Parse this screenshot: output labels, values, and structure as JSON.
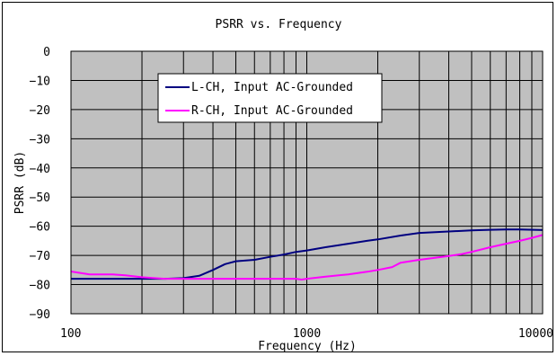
{
  "chart_data": {
    "type": "line",
    "title": "PSRR vs. Frequency",
    "xlabel": "Frequency (Hz)",
    "ylabel": "PSRR (dB)",
    "xscale": "log",
    "xlim": [
      100,
      10000
    ],
    "ylim": [
      -90,
      0
    ],
    "x_ticks": [
      {
        "value": 100,
        "label": "100"
      },
      {
        "value": 1000,
        "label": "1000"
      },
      {
        "value": 10000,
        "label": "10000"
      }
    ],
    "y_ticks": [
      {
        "value": 0,
        "label": "0"
      },
      {
        "value": -10,
        "label": "−10"
      },
      {
        "value": -20,
        "label": "−20"
      },
      {
        "value": -30,
        "label": "−30"
      },
      {
        "value": -40,
        "label": "−40"
      },
      {
        "value": -50,
        "label": "−50"
      },
      {
        "value": -60,
        "label": "−60"
      },
      {
        "value": -70,
        "label": "−70"
      },
      {
        "value": -80,
        "label": "−80"
      },
      {
        "value": -90,
        "label": "−90"
      }
    ],
    "grid": true,
    "plot_background": "#c0c0c0",
    "legend_position": "top-left",
    "series": [
      {
        "name": "L-CH, Input AC-Grounded",
        "color": "#000080",
        "x": [
          100,
          150,
          200,
          250,
          300,
          350,
          400,
          450,
          500,
          600,
          700,
          800,
          900,
          1000,
          1200,
          1500,
          1800,
          2000,
          2500,
          3000,
          3500,
          4000,
          5000,
          6000,
          7000,
          8000,
          10000
        ],
        "y": [
          -78,
          -78,
          -78,
          -78,
          -77.8,
          -77,
          -75,
          -73,
          -72,
          -71.5,
          -70.5,
          -69.7,
          -68.8,
          -68.3,
          -67.2,
          -66,
          -65,
          -64.5,
          -63.2,
          -62.3,
          -62,
          -61.8,
          -61.4,
          -61.2,
          -61.1,
          -61.1,
          -61.3
        ]
      },
      {
        "name": "R-CH, Input AC-Grounded",
        "color": "#ff00ff",
        "x": [
          100,
          120,
          150,
          170,
          200,
          250,
          300,
          400,
          500,
          700,
          900,
          950,
          1000,
          1200,
          1500,
          1800,
          2000,
          2300,
          2500,
          3000,
          3500,
          4000,
          4500,
          5000,
          6000,
          7000,
          8000,
          9000,
          10000
        ],
        "y": [
          -75.5,
          -76.5,
          -76.5,
          -76.8,
          -77.5,
          -78,
          -78,
          -78,
          -78,
          -78,
          -78,
          -78.3,
          -78,
          -77.3,
          -76.5,
          -75.6,
          -75,
          -74,
          -72.5,
          -71.5,
          -70.8,
          -70.2,
          -69.6,
          -68.8,
          -67.2,
          -66,
          -65,
          -64,
          -63
        ]
      }
    ]
  }
}
